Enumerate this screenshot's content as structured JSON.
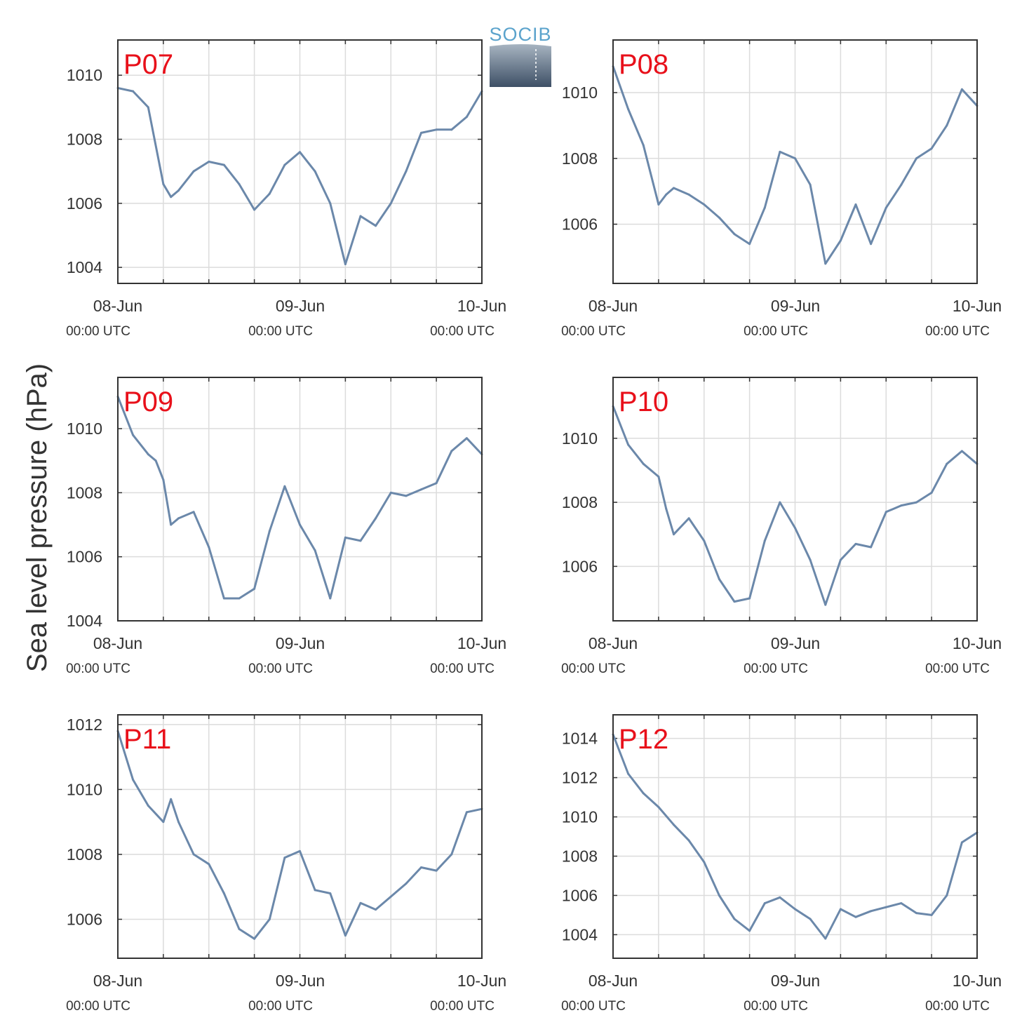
{
  "ylabel": "Sea level pressure (hPa)",
  "colors": {
    "line": "#6b88aa",
    "panel_label": "#e8101a",
    "grid": "#dcdcdc",
    "axis": "#333333",
    "text": "#333333"
  },
  "logo": {
    "text": "SOCIB"
  },
  "chart_data": [
    {
      "type": "line",
      "title": "P07",
      "label": "P07",
      "x": [
        "08-Jun 00:00",
        "08-Jun 02:00",
        "08-Jun 04:00",
        "08-Jun 06:00",
        "08-Jun 07:00",
        "08-Jun 08:00",
        "08-Jun 10:00",
        "08-Jun 12:00",
        "08-Jun 14:00",
        "08-Jun 16:00",
        "08-Jun 18:00",
        "08-Jun 20:00",
        "08-Jun 22:00",
        "08-Jun 24:00",
        "09-Jun 02:00",
        "09-Jun 04:00",
        "09-Jun 06:00",
        "09-Jun 08:00",
        "09-Jun 10:00",
        "09-Jun 12:00",
        "09-Jun 14:00",
        "09-Jun 16:00",
        "09-Jun 18:00",
        "09-Jun 20:00",
        "09-Jun 22:00",
        "09-Jun 24:00"
      ],
      "values": [
        1009.6,
        1009.5,
        1009.0,
        1006.6,
        1006.2,
        1006.4,
        1007.0,
        1007.3,
        1007.2,
        1006.6,
        1005.8,
        1006.3,
        1007.2,
        1007.6,
        1007.0,
        1006.0,
        1004.1,
        1005.6,
        1005.3,
        1006.0,
        1007.0,
        1008.2,
        1008.3,
        1008.3,
        1008.7,
        1009.5
      ],
      "yticks": [
        1004,
        1006,
        1008,
        1010
      ],
      "ylim": [
        1003.5,
        1011.1
      ],
      "xticks": [
        "08-Jun",
        "09-Jun",
        "10-Jun"
      ],
      "xtick_sub": "00:00 UTC"
    },
    {
      "type": "line",
      "title": "P08",
      "label": "P08",
      "x": [
        "08-Jun 00:00",
        "08-Jun 02:00",
        "08-Jun 04:00",
        "08-Jun 06:00",
        "08-Jun 07:00",
        "08-Jun 08:00",
        "08-Jun 10:00",
        "08-Jun 12:00",
        "08-Jun 14:00",
        "08-Jun 16:00",
        "08-Jun 18:00",
        "08-Jun 20:00",
        "08-Jun 22:00",
        "08-Jun 24:00",
        "09-Jun 02:00",
        "09-Jun 04:00",
        "09-Jun 06:00",
        "09-Jun 08:00",
        "09-Jun 10:00",
        "09-Jun 12:00",
        "09-Jun 14:00",
        "09-Jun 16:00",
        "09-Jun 18:00",
        "09-Jun 20:00",
        "09-Jun 22:00",
        "09-Jun 24:00"
      ],
      "values": [
        1010.8,
        1009.5,
        1008.4,
        1006.6,
        1006.9,
        1007.1,
        1006.9,
        1006.6,
        1006.2,
        1005.7,
        1005.4,
        1006.5,
        1008.2,
        1008.0,
        1007.2,
        1004.8,
        1005.5,
        1006.6,
        1005.4,
        1006.5,
        1007.2,
        1008.0,
        1008.3,
        1009.0,
        1010.1,
        1009.6
      ],
      "yticks": [
        1006,
        1008,
        1010
      ],
      "ylim": [
        1004.2,
        1011.6
      ],
      "xticks": [
        "08-Jun",
        "09-Jun",
        "10-Jun"
      ],
      "xtick_sub": "00:00 UTC"
    },
    {
      "type": "line",
      "title": "P09",
      "label": "P09",
      "x": [
        "08-Jun 00:00",
        "08-Jun 02:00",
        "08-Jun 04:00",
        "08-Jun 05:00",
        "08-Jun 06:00",
        "08-Jun 07:00",
        "08-Jun 08:00",
        "08-Jun 10:00",
        "08-Jun 12:00",
        "08-Jun 14:00",
        "08-Jun 16:00",
        "08-Jun 18:00",
        "08-Jun 20:00",
        "08-Jun 22:00",
        "09-Jun 00:00",
        "09-Jun 02:00",
        "09-Jun 04:00",
        "09-Jun 06:00",
        "09-Jun 08:00",
        "09-Jun 10:00",
        "09-Jun 12:00",
        "09-Jun 14:00",
        "09-Jun 16:00",
        "09-Jun 18:00",
        "09-Jun 20:00",
        "09-Jun 22:00",
        "09-Jun 24:00"
      ],
      "values": [
        1011.0,
        1009.8,
        1009.2,
        1009.0,
        1008.4,
        1007.0,
        1007.2,
        1007.4,
        1006.3,
        1004.7,
        1004.7,
        1005.0,
        1006.8,
        1008.2,
        1007.0,
        1006.2,
        1004.7,
        1006.6,
        1006.5,
        1007.2,
        1008.0,
        1007.9,
        1008.1,
        1008.3,
        1009.3,
        1009.7,
        1009.2
      ],
      "yticks": [
        1004,
        1006,
        1008,
        1010
      ],
      "ylim": [
        1004.0,
        1011.6
      ],
      "xticks": [
        "08-Jun",
        "09-Jun",
        "10-Jun"
      ],
      "xtick_sub": "00:00 UTC"
    },
    {
      "type": "line",
      "title": "P10",
      "label": "P10",
      "x": [
        "08-Jun 00:00",
        "08-Jun 02:00",
        "08-Jun 04:00",
        "08-Jun 05:00",
        "08-Jun 06:00",
        "08-Jun 07:00",
        "08-Jun 08:00",
        "08-Jun 10:00",
        "08-Jun 12:00",
        "08-Jun 14:00",
        "08-Jun 16:00",
        "08-Jun 18:00",
        "08-Jun 20:00",
        "08-Jun 22:00",
        "09-Jun 00:00",
        "09-Jun 02:00",
        "09-Jun 04:00",
        "09-Jun 06:00",
        "09-Jun 08:00",
        "09-Jun 10:00",
        "09-Jun 12:00",
        "09-Jun 14:00",
        "09-Jun 16:00",
        "09-Jun 18:00",
        "09-Jun 20:00",
        "09-Jun 22:00",
        "09-Jun 24:00"
      ],
      "values": [
        1011.0,
        1009.8,
        1009.2,
        1009.0,
        1008.8,
        1007.8,
        1007.0,
        1007.5,
        1006.8,
        1005.6,
        1004.9,
        1005.0,
        1006.8,
        1008.0,
        1007.2,
        1006.2,
        1004.8,
        1006.2,
        1006.7,
        1006.6,
        1007.7,
        1007.9,
        1008.0,
        1008.3,
        1009.2,
        1009.6,
        1009.2
      ],
      "yticks": [
        1006,
        1008,
        1010
      ],
      "ylim": [
        1004.3,
        1011.9
      ],
      "xticks": [
        "08-Jun",
        "09-Jun",
        "10-Jun"
      ],
      "xtick_sub": "00:00 UTC"
    },
    {
      "type": "line",
      "title": "P11",
      "label": "P11",
      "x": [
        "08-Jun 00:00",
        "08-Jun 02:00",
        "08-Jun 04:00",
        "08-Jun 06:00",
        "08-Jun 07:00",
        "08-Jun 08:00",
        "08-Jun 10:00",
        "08-Jun 12:00",
        "08-Jun 14:00",
        "08-Jun 16:00",
        "08-Jun 18:00",
        "08-Jun 20:00",
        "08-Jun 22:00",
        "09-Jun 00:00",
        "09-Jun 02:00",
        "09-Jun 04:00",
        "09-Jun 06:00",
        "09-Jun 08:00",
        "09-Jun 10:00",
        "09-Jun 12:00",
        "09-Jun 14:00",
        "09-Jun 16:00",
        "09-Jun 18:00",
        "09-Jun 20:00",
        "09-Jun 22:00",
        "09-Jun 24:00"
      ],
      "values": [
        1011.8,
        1010.3,
        1009.5,
        1009.0,
        1009.7,
        1009.0,
        1008.0,
        1007.7,
        1006.8,
        1005.7,
        1005.4,
        1006.0,
        1007.9,
        1008.1,
        1006.9,
        1006.8,
        1005.5,
        1006.5,
        1006.3,
        1006.7,
        1007.1,
        1007.6,
        1007.5,
        1008.0,
        1009.3,
        1009.4
      ],
      "yticks": [
        1006,
        1008,
        1010,
        1012
      ],
      "ylim": [
        1004.8,
        1012.3
      ],
      "xticks": [
        "08-Jun",
        "09-Jun",
        "10-Jun"
      ],
      "xtick_sub": "00:00 UTC"
    },
    {
      "type": "line",
      "title": "P12",
      "label": "P12",
      "x": [
        "08-Jun 00:00",
        "08-Jun 02:00",
        "08-Jun 04:00",
        "08-Jun 06:00",
        "08-Jun 08:00",
        "08-Jun 10:00",
        "08-Jun 12:00",
        "08-Jun 14:00",
        "08-Jun 16:00",
        "08-Jun 18:00",
        "08-Jun 20:00",
        "08-Jun 22:00",
        "09-Jun 00:00",
        "09-Jun 02:00",
        "09-Jun 04:00",
        "09-Jun 06:00",
        "09-Jun 08:00",
        "09-Jun 10:00",
        "09-Jun 12:00",
        "09-Jun 14:00",
        "09-Jun 16:00",
        "09-Jun 18:00",
        "09-Jun 20:00",
        "09-Jun 22:00",
        "09-Jun 24:00"
      ],
      "values": [
        1014.2,
        1012.2,
        1011.2,
        1010.5,
        1009.6,
        1008.8,
        1007.7,
        1006.0,
        1004.8,
        1004.2,
        1005.6,
        1005.9,
        1005.3,
        1004.8,
        1003.8,
        1005.3,
        1004.9,
        1005.2,
        1005.4,
        1005.6,
        1005.1,
        1005.0,
        1006.0,
        1008.7,
        1009.2
      ],
      "yticks": [
        1004,
        1006,
        1008,
        1010,
        1012,
        1014
      ],
      "ylim": [
        1002.8,
        1015.2
      ],
      "xticks": [
        "08-Jun",
        "09-Jun",
        "10-Jun"
      ],
      "xtick_sub": "00:00 UTC"
    }
  ]
}
